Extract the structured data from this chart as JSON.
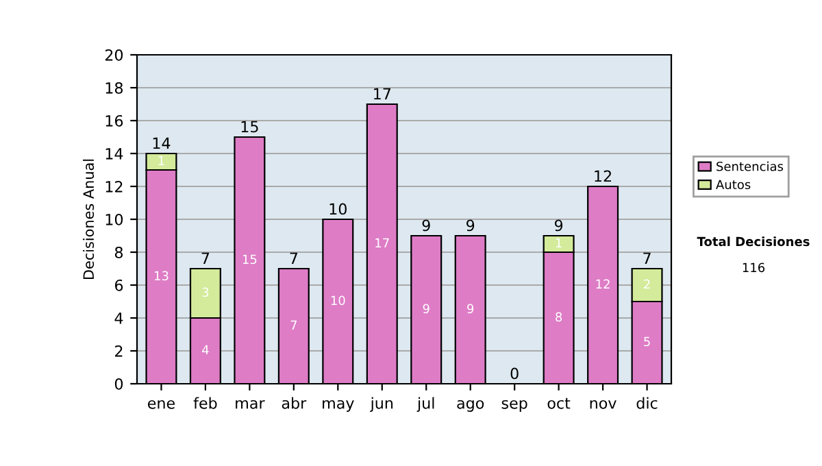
{
  "chart_data": {
    "type": "bar",
    "stacked": true,
    "ylabel": "Decisiones Anual",
    "categories": [
      "ene",
      "feb",
      "mar",
      "abr",
      "may",
      "jun",
      "jul",
      "ago",
      "sep",
      "oct",
      "nov",
      "dic"
    ],
    "series": [
      {
        "name": "Sentencias",
        "color": "#de7cc6",
        "values": [
          13,
          4,
          15,
          7,
          10,
          17,
          9,
          9,
          0,
          8,
          12,
          5
        ],
        "value_labels": [
          "13",
          "4",
          "15",
          "7",
          "10",
          "17",
          "9",
          "9",
          null,
          "8",
          "12",
          "5"
        ]
      },
      {
        "name": "Autos",
        "color": "#d3eb9b",
        "values": [
          1,
          3,
          0,
          0,
          0,
          0,
          0,
          0,
          0,
          1,
          0,
          2
        ],
        "value_labels": [
          "1",
          "3",
          null,
          null,
          null,
          null,
          null,
          null,
          null,
          "1",
          null,
          "2"
        ]
      }
    ],
    "totals": [
      "14",
      "7",
      "15",
      "7",
      "10",
      "17",
      "9",
      "9",
      "0",
      "9",
      "12",
      "7"
    ],
    "ylim": [
      0,
      20
    ],
    "yticks": [
      0,
      2,
      4,
      6,
      8,
      10,
      12,
      14,
      16,
      18,
      20
    ],
    "grid": "y",
    "legend": "right",
    "annotations": [
      "Total Decisiones",
      "116"
    ]
  }
}
